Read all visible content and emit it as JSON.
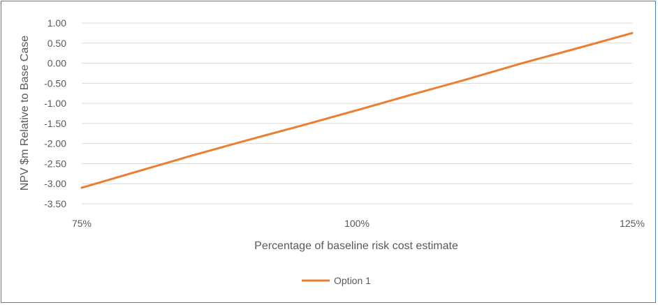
{
  "chart_data": {
    "type": "line",
    "xlabel": "Percentage of baseline risk cost estimate",
    "ylabel": "NPV $m Relative to Base Case",
    "x_ticks": [
      "75%",
      "100%",
      "125%"
    ],
    "y_ticks": [
      "1.00",
      "0.50",
      "0.00",
      "-0.50",
      "-1.00",
      "-1.50",
      "-2.00",
      "-2.50",
      "-3.00",
      "-3.50"
    ],
    "xlim": [
      75,
      125
    ],
    "ylim": [
      -3.5,
      1.0
    ],
    "grid": "horizontal",
    "legend_position": "bottom",
    "series": [
      {
        "name": "Option 1",
        "color": "#ed7d31",
        "x": [
          75,
          80,
          85,
          90,
          95,
          100,
          105,
          110,
          115,
          120,
          125
        ],
        "y": [
          -3.1,
          -2.7,
          -2.3,
          -1.92,
          -1.55,
          -1.17,
          -0.78,
          -0.4,
          0.0,
          0.37,
          0.75
        ]
      }
    ]
  }
}
